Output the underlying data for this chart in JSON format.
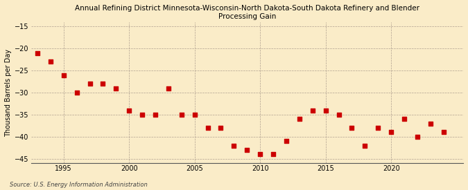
{
  "title": "Annual Refining District Minnesota-Wisconsin-North Dakota-South Dakota Refinery and Blender\nProcessing Gain",
  "ylabel": "Thousand Barrels per Day",
  "source": "Source: U.S. Energy Information Administration",
  "background_color": "#faecc8",
  "plot_bg_color": "#faecc8",
  "marker_color": "#cc0000",
  "marker_size": 4,
  "xlim": [
    1992.5,
    2025.5
  ],
  "ylim": [
    -46,
    -14
  ],
  "yticks": [
    -45,
    -40,
    -35,
    -30,
    -25,
    -20,
    -15
  ],
  "xticks": [
    1995,
    2000,
    2005,
    2010,
    2015,
    2020
  ],
  "years": [
    1993,
    1994,
    1995,
    1996,
    1997,
    1998,
    1999,
    2000,
    2001,
    2002,
    2003,
    2004,
    2005,
    2006,
    2007,
    2008,
    2009,
    2010,
    2011,
    2012,
    2013,
    2014,
    2015,
    2016,
    2017,
    2018,
    2019,
    2020,
    2021,
    2022,
    2023,
    2024
  ],
  "values": [
    -21,
    -23,
    -26,
    -30,
    -28,
    -28,
    -29,
    -34,
    -35,
    -35,
    -29,
    -35,
    -35,
    -38,
    -38,
    -42,
    -43,
    -44,
    -44,
    -41,
    -36,
    -34,
    -34,
    -35,
    -38,
    -42,
    -38,
    -39,
    -36,
    -40,
    -37,
    -39
  ]
}
